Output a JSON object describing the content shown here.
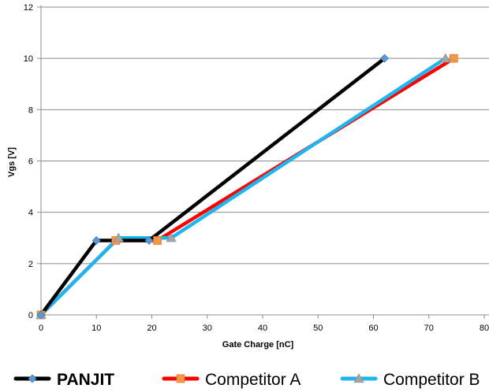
{
  "chart_data": {
    "type": "line",
    "xlabel": "Gate Charge [nC]",
    "ylabel": "Vgs [V]",
    "xlim": [
      0,
      80
    ],
    "ylim": [
      0,
      12
    ],
    "xticks": [
      0,
      10,
      20,
      30,
      40,
      50,
      60,
      70,
      80
    ],
    "yticks": [
      0,
      2,
      4,
      6,
      8,
      10,
      12
    ],
    "grid": "horizontal",
    "legend_position": "bottom",
    "series": [
      {
        "name": "PANJIT",
        "color": "#000000",
        "marker": "diamond",
        "marker_color": "#5b9bd5",
        "legend_bold": true,
        "x": [
          0,
          10,
          19.5,
          62
        ],
        "y": [
          0,
          2.9,
          2.9,
          10
        ]
      },
      {
        "name": "Competitor A",
        "color": "#ff0000",
        "marker": "square",
        "marker_color": "#f79646",
        "legend_bold": false,
        "x": [
          0,
          13.5,
          21,
          74.5
        ],
        "y": [
          0,
          2.9,
          2.9,
          10
        ]
      },
      {
        "name": "Competitor B",
        "color": "#1fb6ef",
        "marker": "triangle",
        "marker_color": "#a5a5a5",
        "legend_bold": false,
        "x": [
          0,
          14,
          23.5,
          73
        ],
        "y": [
          0,
          3,
          3,
          10
        ]
      }
    ]
  }
}
